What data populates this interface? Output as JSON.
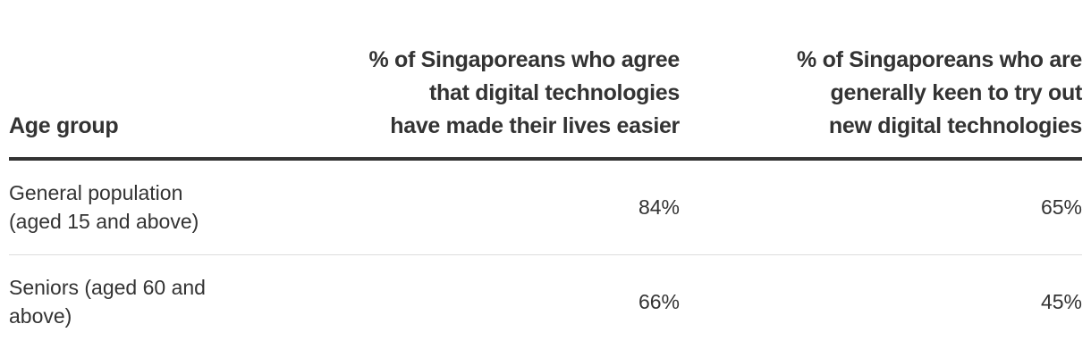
{
  "table": {
    "header": [
      [
        "Age group"
      ],
      [
        "% of Singaporeans who agree",
        "that digital technologies",
        "have made their lives easier"
      ],
      [
        "% of Singaporeans who are",
        "generally keen to try out",
        "new digital technologies"
      ]
    ],
    "rows": [
      [
        [
          "General population",
          "(aged 15 and above)"
        ],
        "84%",
        "65%"
      ],
      [
        [
          "Seniors (aged 60 and",
          "above)"
        ],
        "66%",
        "45%"
      ]
    ]
  }
}
